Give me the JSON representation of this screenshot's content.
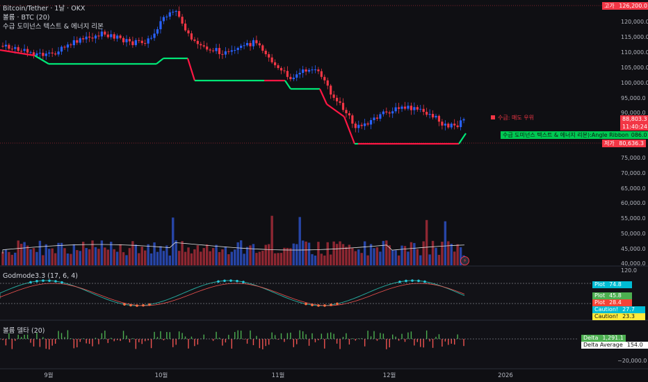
{
  "header": {
    "symbol_line": "Bitcoin/Tether · 1날 · OKX",
    "vol_line": "볼륨 · BTC (20)",
    "indicator_line": "수급 도미넌스 텍스트 & 에너지 리본"
  },
  "price_axis": {
    "ticks": [
      "120,000.0",
      "115,000.0",
      "110,000.0",
      "105,000.0",
      "100,000.0",
      "95,000.0",
      "90,000.0",
      "85,000.0",
      "75,000.0",
      "70,000.0",
      "65,000.0",
      "60,000.0",
      "55,000.0",
      "50,000.0",
      "45,000.0",
      "40,000.0"
    ],
    "high_label": "고가",
    "high_value": "126,200.0",
    "last_price": "88,803.3",
    "countdown": "11:40:24",
    "ribbon_value": "83,086.0",
    "low_label": "저가",
    "low_value": "80,636.3"
  },
  "annotations": {
    "sell_dominant": "수급: 매도 우위",
    "ribbon_label": "수급 도미넌스 텍스트 & 에너지 리본):Angle Ribbon"
  },
  "colors": {
    "up": "#2962ff",
    "down": "#f23645",
    "ribbon_green": "#00e676",
    "ribbon_red": "#ff1744",
    "plot_cyan": "#00bcd4",
    "plot_green": "#4caf50",
    "plot_red": "#f44336",
    "caution_yellow": "#ffeb3b"
  },
  "osc_pane": {
    "title": "Godmode3.3 (17, 6, 4)",
    "axis_top": "120.0",
    "labels": [
      {
        "name": "Plot",
        "value": "74.8",
        "color": "#00bcd4"
      },
      {
        "name": "Plot",
        "value": "45.8",
        "color": "#4caf50"
      },
      {
        "name": "Plot",
        "value": "28.4",
        "color": "#f44336"
      },
      {
        "name": "Caution!",
        "value": "27.7",
        "color": "#00bcd4"
      },
      {
        "name": "Caution!",
        "value": "23.3",
        "color": "#ffeb3b"
      }
    ]
  },
  "delta_pane": {
    "title": "볼륨 델타 (20)",
    "delta_label": "Delta",
    "delta_value": "1,291.1",
    "avg_label": "Delta Average",
    "avg_value": "154.0",
    "axis_neg": "−20,000.0"
  },
  "time_axis": [
    "9월",
    "10월",
    "11월",
    "12월",
    "2026"
  ]
}
